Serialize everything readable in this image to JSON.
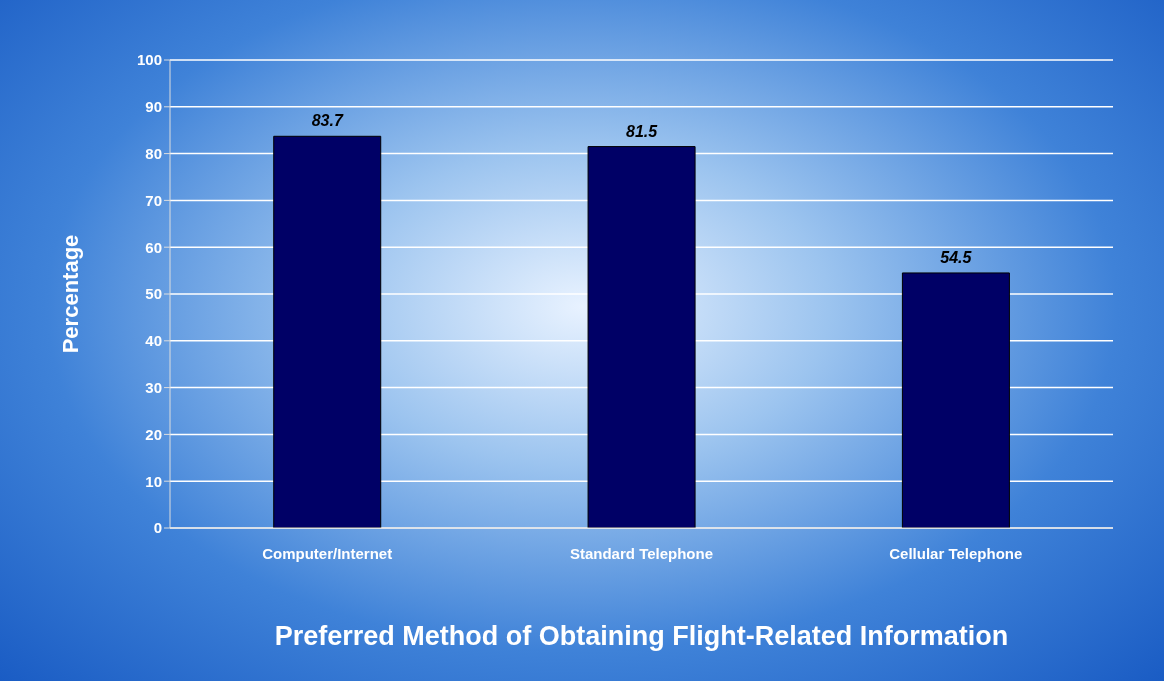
{
  "chart_data": {
    "type": "bar",
    "xlabel": "Preferred Method of Obtaining Flight-Related Information",
    "ylabel": "Percentage",
    "categories": [
      "Computer/Internet",
      "Standard Telephone",
      "Cellular Telephone"
    ],
    "values": [
      83.7,
      81.5,
      54.5
    ],
    "color": "#000066",
    "ylim": [
      0,
      100
    ],
    "yticks": [
      0,
      10,
      20,
      30,
      40,
      50,
      60,
      70,
      80,
      90,
      100
    ],
    "grid": "y",
    "data_labels": true,
    "legend": false
  }
}
